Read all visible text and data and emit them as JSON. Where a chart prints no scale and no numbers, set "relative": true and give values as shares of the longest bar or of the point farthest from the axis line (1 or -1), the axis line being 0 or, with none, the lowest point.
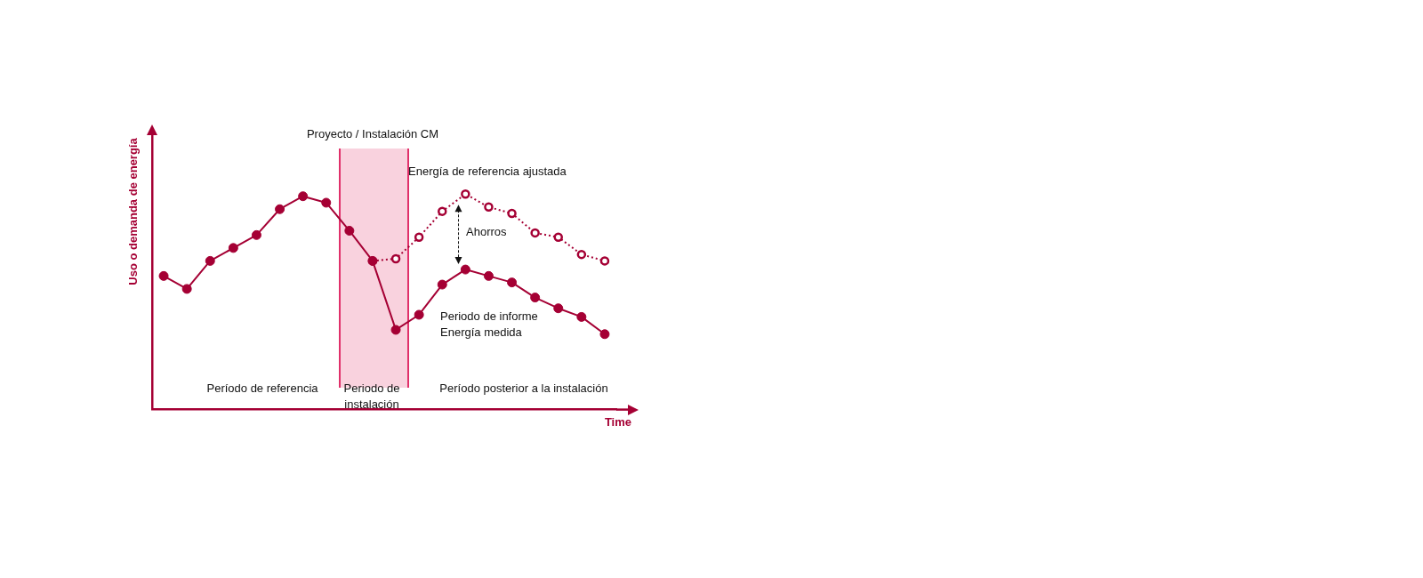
{
  "chart_data": {
    "type": "line",
    "relative": true,
    "xlabel": "Time",
    "ylabel": "Uso o demanda de energía",
    "categories": [
      null,
      null,
      null,
      null,
      null,
      null,
      null,
      null,
      null,
      null,
      null,
      null,
      null,
      null,
      null,
      null,
      null,
      null,
      null,
      null
    ],
    "marker": "circle",
    "series": [
      {
        "name": "Energía medida",
        "color": "#a50034",
        "line_style": "solid",
        "values": [
          0.62,
          0.56,
          0.69,
          0.75,
          0.81,
          0.93,
          0.99,
          0.96,
          0.83,
          0.69,
          0.37,
          0.44,
          0.58,
          0.65,
          0.62,
          0.59,
          0.52,
          0.47,
          0.43,
          0.35
        ]
      },
      {
        "name": "Energía de referencia ajustada",
        "color": "#a50034",
        "line_style": "dotted",
        "values": [
          null,
          null,
          null,
          null,
          null,
          null,
          null,
          null,
          null,
          0.69,
          0.7,
          0.8,
          0.92,
          1.0,
          0.94,
          0.91,
          0.82,
          0.8,
          0.72,
          0.69
        ]
      }
    ],
    "annotations": [
      "Proyecto / Instalación CM",
      "Período de referencia",
      "Periodo de instalación",
      "Período posterior a la instalación",
      "Periodo de informe",
      "Ahorros"
    ]
  }
}
